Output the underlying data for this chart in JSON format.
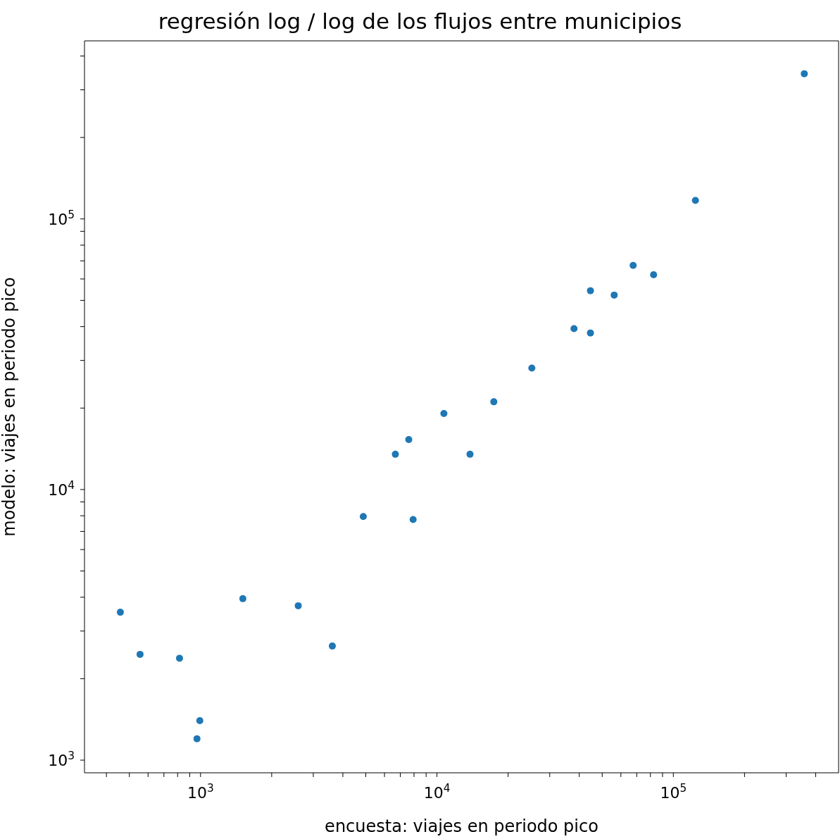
{
  "chart_data": {
    "type": "scatter",
    "title": "regresión log / log de los flujos entre municipios",
    "xlabel": "encuesta: viajes en periodo pico",
    "ylabel": "modelo: viajes en periodo pico",
    "log": "xy",
    "marker": "circle",
    "x": [
      458,
      555,
      815,
      993,
      966,
      1510,
      2590,
      3610,
      4880,
      7930,
      6670,
      7600,
      10700,
      13800,
      17400,
      25200,
      38000,
      44600,
      44600,
      56200,
      67600,
      82500,
      124000,
      358000
    ],
    "series": [
      {
        "color": "#1f77b4",
        "values": [
          3520,
          2460,
          2380,
          1400,
          1200,
          3950,
          3720,
          2640,
          7950,
          7750,
          13500,
          15300,
          19100,
          13500,
          21100,
          28100,
          39300,
          37900,
          54300,
          52300,
          67300,
          62200,
          117000,
          344000
        ]
      }
    ],
    "xlim": [
      323,
      500000
    ],
    "ylim": [
      898,
      455000
    ],
    "xticks": [
      {
        "value": 400,
        "label": null
      },
      {
        "value": 500,
        "label": null
      },
      {
        "value": 600,
        "label": null
      },
      {
        "value": 700,
        "label": null
      },
      {
        "value": 800,
        "label": null
      },
      {
        "value": 900,
        "label": null
      },
      {
        "value": 1000,
        "label": "10$^{3}$"
      },
      {
        "value": 2000,
        "label": null
      },
      {
        "value": 3000,
        "label": null
      },
      {
        "value": 4000,
        "label": null
      },
      {
        "value": 5000,
        "label": null
      },
      {
        "value": 6000,
        "label": null
      },
      {
        "value": 7000,
        "label": null
      },
      {
        "value": 8000,
        "label": null
      },
      {
        "value": 9000,
        "label": null
      },
      {
        "value": 10000,
        "label": "10$^{4}$"
      },
      {
        "value": 20000,
        "label": null
      },
      {
        "value": 30000,
        "label": null
      },
      {
        "value": 40000,
        "label": null
      },
      {
        "value": 50000,
        "label": null
      },
      {
        "value": 60000,
        "label": null
      },
      {
        "value": 70000,
        "label": null
      },
      {
        "value": 80000,
        "label": null
      },
      {
        "value": 90000,
        "label": null
      },
      {
        "value": 100000,
        "label": "10$^{5}$"
      },
      {
        "value": 200000,
        "label": null
      },
      {
        "value": 300000,
        "label": null
      },
      {
        "value": 400000,
        "label": null
      }
    ],
    "yticks": [
      {
        "value": 1000,
        "label": "10$^{3}$"
      },
      {
        "value": 2000,
        "label": null
      },
      {
        "value": 3000,
        "label": null
      },
      {
        "value": 4000,
        "label": null
      },
      {
        "value": 5000,
        "label": null
      },
      {
        "value": 6000,
        "label": null
      },
      {
        "value": 7000,
        "label": null
      },
      {
        "value": 8000,
        "label": null
      },
      {
        "value": 9000,
        "label": null
      },
      {
        "value": 10000,
        "label": "10$^{4}$"
      },
      {
        "value": 20000,
        "label": null
      },
      {
        "value": 30000,
        "label": null
      },
      {
        "value": 40000,
        "label": null
      },
      {
        "value": 50000,
        "label": null
      },
      {
        "value": 60000,
        "label": null
      },
      {
        "value": 70000,
        "label": null
      },
      {
        "value": 80000,
        "label": null
      },
      {
        "value": 90000,
        "label": null
      },
      {
        "value": 100000,
        "label": "10$^{5}$"
      },
      {
        "value": 200000,
        "label": null
      },
      {
        "value": 300000,
        "label": null
      },
      {
        "value": 400000,
        "label": null
      }
    ]
  }
}
